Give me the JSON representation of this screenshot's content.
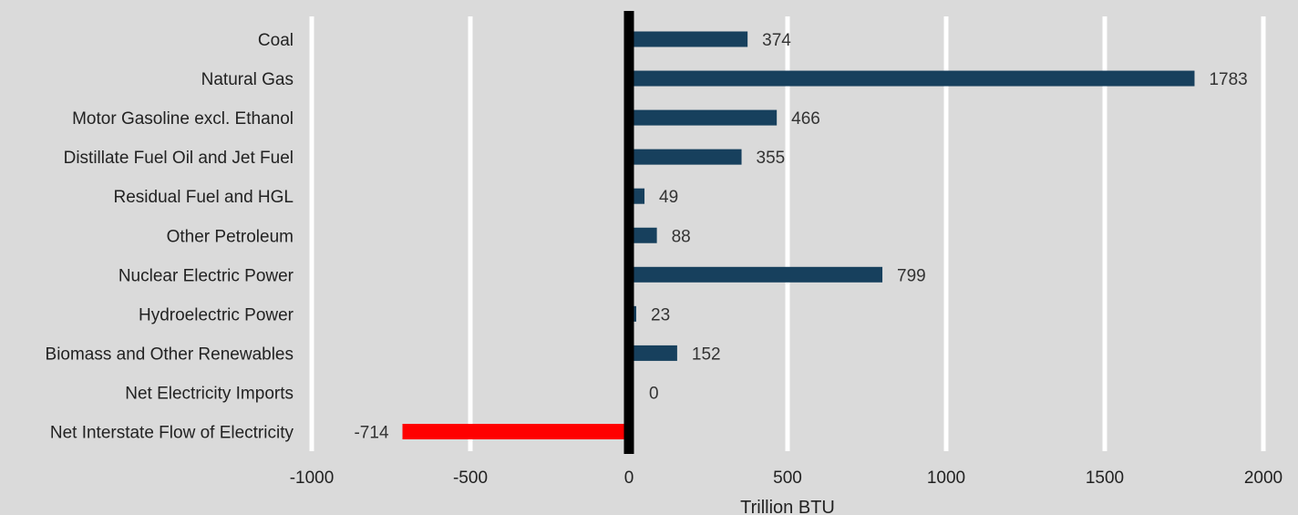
{
  "chart_data": {
    "type": "bar",
    "orientation": "horizontal",
    "title": "",
    "xlabel": "Trillion BTU",
    "ylabel": "",
    "xlim": [
      -1000,
      2000
    ],
    "xticks": [
      -1000,
      -500,
      0,
      500,
      1000,
      1500,
      2000
    ],
    "grid": "vertical",
    "legend": "none",
    "categories": [
      "Coal",
      "Natural Gas",
      "Motor Gasoline excl. Ethanol",
      "Distillate Fuel Oil and Jet Fuel",
      "Residual Fuel and HGL",
      "Other Petroleum",
      "Nuclear Electric Power",
      "Hydroelectric Power",
      "Biomass and Other Renewables",
      "Net Electricity Imports",
      "Net Interstate Flow of Electricity"
    ],
    "values": [
      374,
      1783,
      466,
      355,
      49,
      88,
      799,
      23,
      152,
      0,
      -714
    ],
    "colors": {
      "positive": "#17405d",
      "negative": "#ff0000",
      "zero_line": "#000000",
      "gridline": "#ffffff",
      "background": "#dadada"
    }
  }
}
